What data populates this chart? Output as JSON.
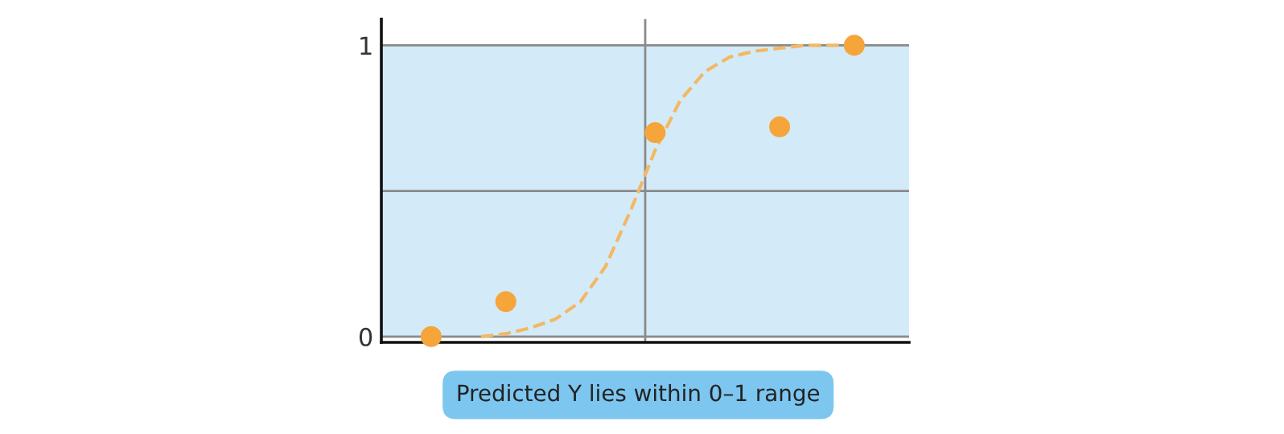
{
  "chart_data": {
    "type": "scatter",
    "categories": [
      null,
      null,
      null,
      null,
      null,
      null,
      null,
      null,
      null,
      null,
      null,
      null,
      null,
      null,
      null,
      null,
      null,
      null
    ],
    "series": [
      {
        "color": "#f5a53a",
        "marker": "circle",
        "values": [
          0,
          null,
          null,
          0.12,
          null,
          null,
          null,
          null,
          null,
          0.7,
          null,
          null,
          null,
          null,
          0.72,
          null,
          null,
          1.0
        ]
      },
      {
        "type": "line",
        "color": "#f2b866",
        "line_style": "dashed",
        "marker": "none",
        "values": [
          null,
          null,
          0,
          0.01,
          0.03,
          0.06,
          0.12,
          0.24,
          0.43,
          0.64,
          0.81,
          0.91,
          0.96,
          0.98,
          0.99,
          1.0,
          1.0,
          1.0
        ]
      }
    ],
    "ylim": [
      -0.02,
      1.09
    ],
    "yticks": [
      0,
      {
        "value": 0.5,
        "label": null
      },
      1
    ],
    "grid": "y",
    "bands": [
      {
        "axis": "y",
        "from": 0,
        "to": 1,
        "color": "#d3ebf8"
      }
    ],
    "annotations": [
      "Predicted Y lies within 0–1 range"
    ]
  }
}
